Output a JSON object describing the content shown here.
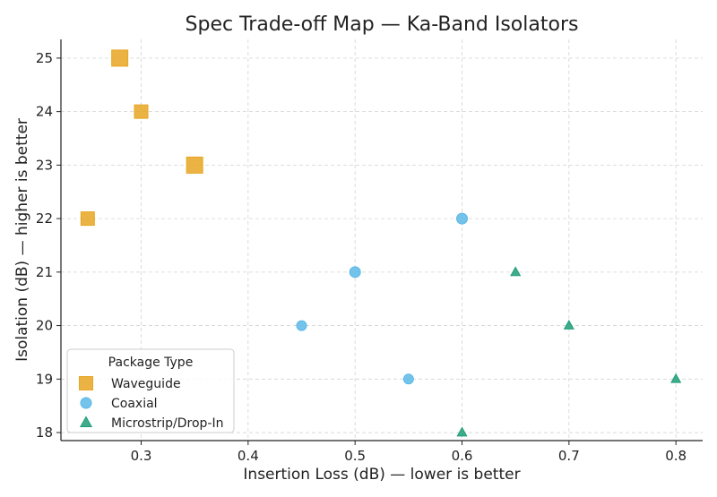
{
  "chart_data": {
    "type": "scatter",
    "title": "Spec Trade-off Map — Ka-Band Isolators",
    "xlabel": "Insertion Loss (dB) — lower is better",
    "ylabel": "Isolation (dB) — higher is better",
    "xlim": [
      0.225,
      0.825
    ],
    "ylim": [
      17.85,
      25.35
    ],
    "xticks": [
      0.3,
      0.4,
      0.5,
      0.6,
      0.7,
      0.8
    ],
    "xtick_labels": [
      "0.3",
      "0.4",
      "0.5",
      "0.6",
      "0.7",
      "0.8"
    ],
    "yticks": [
      18,
      19,
      20,
      21,
      22,
      23,
      24,
      25
    ],
    "ytick_labels": [
      "18",
      "19",
      "20",
      "21",
      "22",
      "23",
      "24",
      "25"
    ],
    "grid": true,
    "legend": {
      "title": "Package Type",
      "placement": "lower-left"
    },
    "series": [
      {
        "name": "Waveguide",
        "marker": "square",
        "color": "#E8A623",
        "points": [
          {
            "x": 0.28,
            "y": 25,
            "size": "large"
          },
          {
            "x": 0.3,
            "y": 24,
            "size": "medium"
          },
          {
            "x": 0.35,
            "y": 23,
            "size": "large"
          },
          {
            "x": 0.25,
            "y": 22,
            "size": "medium"
          }
        ]
      },
      {
        "name": "Coaxial",
        "marker": "circle",
        "color": "#5BB8E8",
        "points": [
          {
            "x": 0.6,
            "y": 22,
            "size": "medium"
          },
          {
            "x": 0.5,
            "y": 21,
            "size": "medium"
          },
          {
            "x": 0.45,
            "y": 20,
            "size": "small"
          },
          {
            "x": 0.55,
            "y": 19,
            "size": "small"
          }
        ]
      },
      {
        "name": "Microstrip/Drop-In",
        "marker": "triangle",
        "color": "#1E9E78",
        "points": [
          {
            "x": 0.65,
            "y": 21,
            "size": "small"
          },
          {
            "x": 0.7,
            "y": 20,
            "size": "small"
          },
          {
            "x": 0.8,
            "y": 19,
            "size": "small"
          },
          {
            "x": 0.6,
            "y": 18,
            "size": "small"
          }
        ]
      }
    ]
  }
}
